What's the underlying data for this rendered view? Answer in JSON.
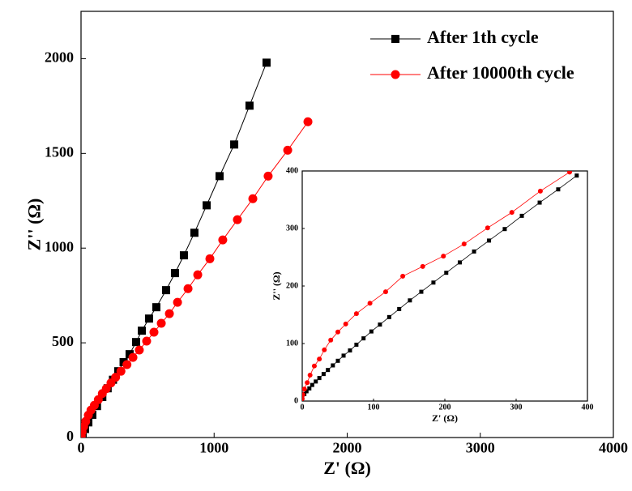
{
  "chart_data": [
    {
      "type": "line",
      "xlabel": "Z' (Ω)",
      "ylabel": "Z'' (Ω)",
      "xlim": [
        0,
        4000
      ],
      "ylim": [
        0,
        2250
      ],
      "xticks": [
        0,
        1000,
        2000,
        3000,
        4000
      ],
      "yticks": [
        0,
        500,
        1000,
        1500,
        2000
      ],
      "legend": "upper right",
      "series": [
        {
          "name": "After 1th cycle",
          "color": "#000000",
          "marker": "square",
          "x": [
            3,
            12,
            30,
            55,
            85,
            120,
            160,
            200,
            240,
            280,
            320,
            365,
            414,
            457,
            511,
            566,
            639,
            706,
            773,
            852,
            944,
            1041,
            1151,
            1266,
            1394
          ],
          "values": [
            8,
            20,
            45,
            80,
            120,
            166,
            214,
            260,
            305,
            350,
            398,
            440,
            504,
            564,
            628,
            688,
            778,
            868,
            962,
            1081,
            1226,
            1380,
            1547,
            1752,
            1979
          ]
        },
        {
          "name": "After 10000th cycle",
          "color": "#ff0000",
          "marker": "circle",
          "x": [
            2,
            8,
            20,
            35,
            55,
            75,
            100,
            130,
            160,
            190,
            225,
            260,
            300,
            345,
            390,
            438,
            493,
            548,
            603,
            664,
            725,
            804,
            877,
            968,
            1065,
            1175,
            1291,
            1406,
            1553,
            1705
          ],
          "values": [
            8,
            30,
            58,
            85,
            118,
            145,
            170,
            200,
            232,
            258,
            288,
            318,
            350,
            385,
            423,
            462,
            509,
            556,
            603,
            654,
            714,
            786,
            859,
            944,
            1043,
            1150,
            1261,
            1380,
            1517,
            1667
          ]
        }
      ]
    },
    {
      "type": "line",
      "xlabel": "Z' (Ω)",
      "ylabel": "Z'' (Ω)",
      "xlim": [
        0,
        400
      ],
      "ylim": [
        0,
        400
      ],
      "xticks": [
        0,
        100,
        200,
        300,
        400
      ],
      "yticks": [
        0,
        100,
        200,
        300,
        400
      ],
      "series": [
        {
          "color": "#000000",
          "marker": "square",
          "x": [
            0,
            3,
            6,
            10,
            14,
            19,
            24,
            30,
            36,
            43,
            50,
            58,
            67,
            76,
            86,
            97,
            109,
            122,
            136,
            151,
            167,
            184,
            202,
            221,
            241,
            262,
            284,
            308,
            333,
            359,
            385
          ],
          "values": [
            8,
            12,
            17,
            22,
            28,
            34,
            40,
            47,
            54,
            62,
            70,
            79,
            88,
            98,
            109,
            121,
            133,
            146,
            160,
            175,
            190,
            206,
            223,
            241,
            260,
            279,
            299,
            322,
            345,
            368,
            392
          ]
        },
        {
          "color": "#ff0000",
          "marker": "circle",
          "x": [
            0,
            1,
            3,
            7,
            11,
            17,
            24,
            31,
            40,
            50,
            61,
            76,
            95,
            117,
            141,
            169,
            198,
            227,
            260,
            294,
            334,
            375
          ],
          "values": [
            4,
            11,
            21,
            32,
            45,
            61,
            73,
            89,
            106,
            120,
            134,
            152,
            170,
            190,
            217,
            234,
            252,
            273,
            301,
            328,
            365,
            398
          ]
        }
      ]
    }
  ]
}
